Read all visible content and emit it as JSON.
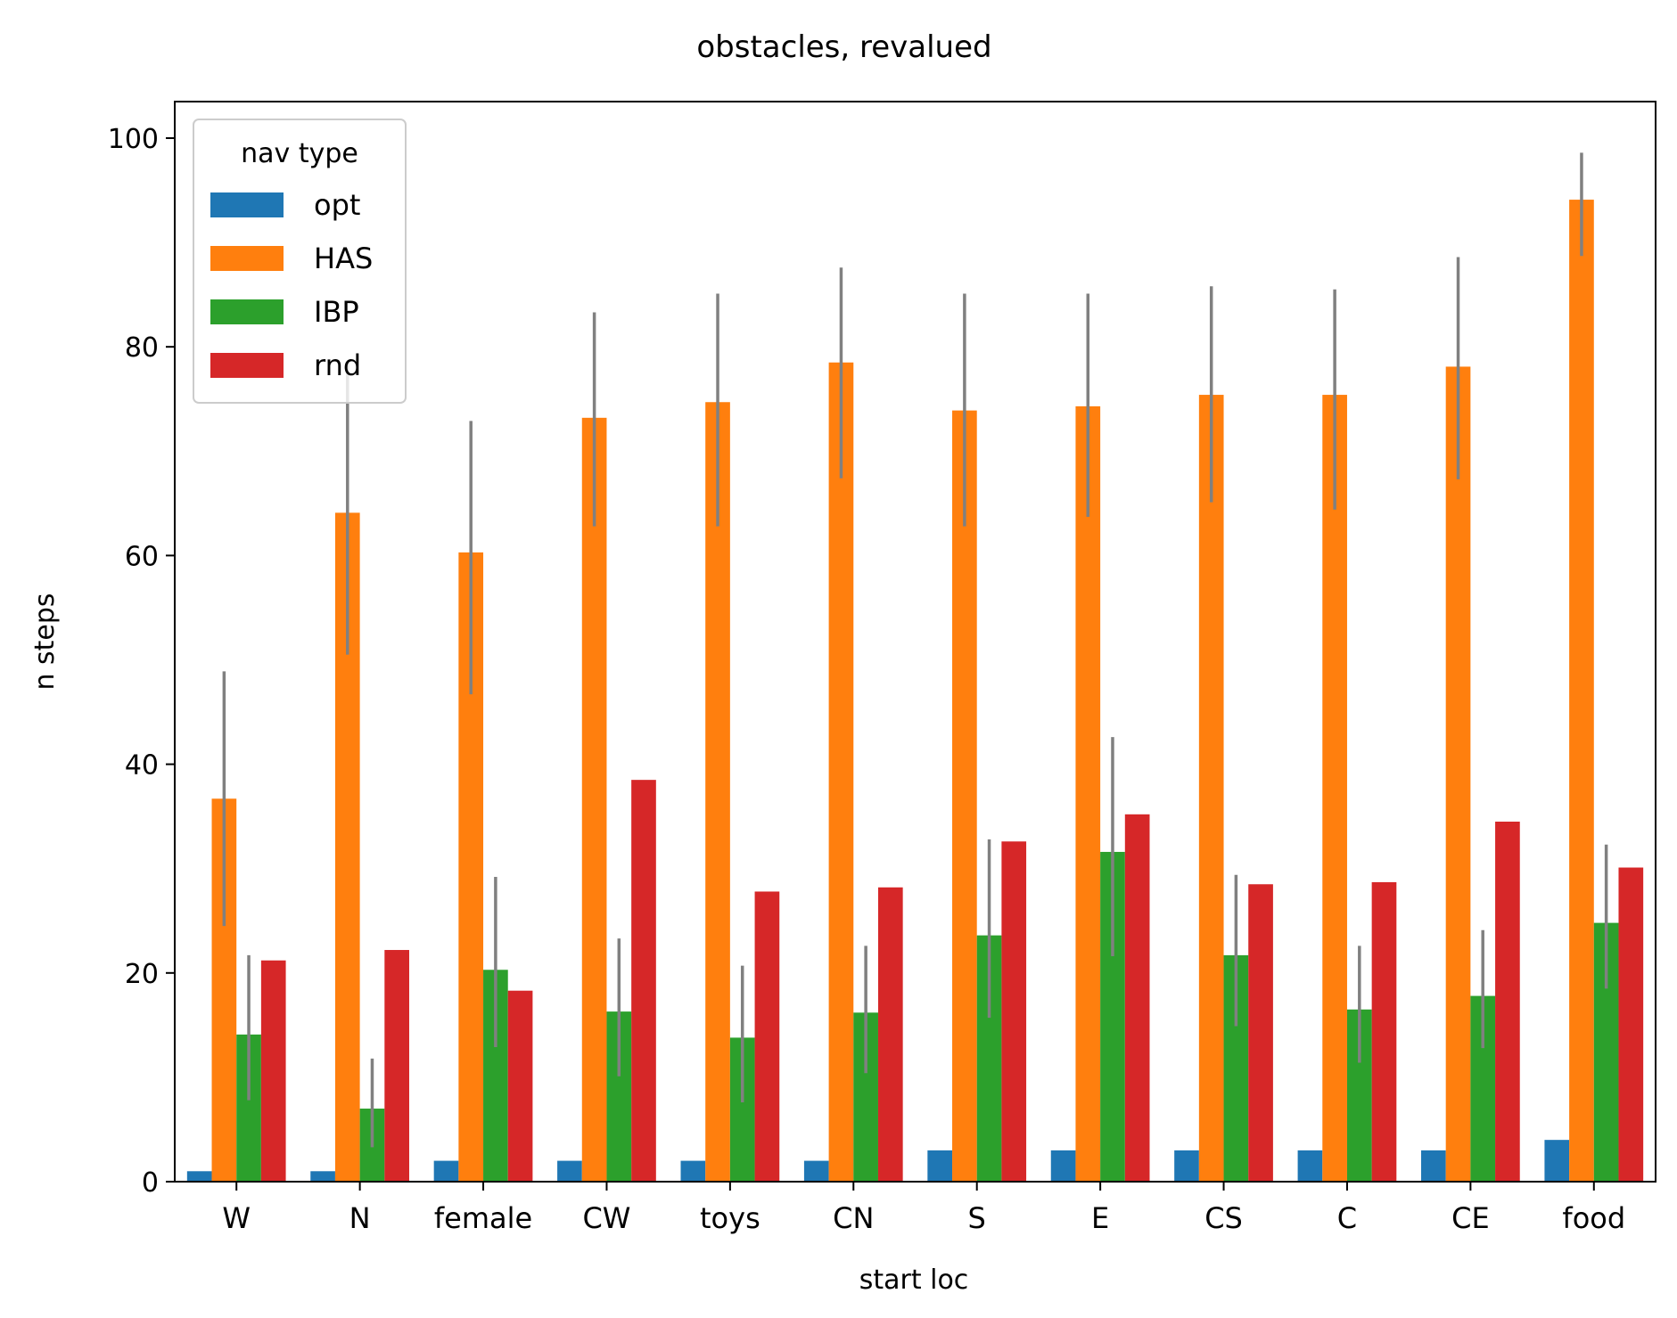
{
  "chart_data": {
    "type": "bar",
    "title": "obstacles, revalued",
    "xlabel": "start loc",
    "ylabel": "n steps",
    "ylim": [
      0,
      103.5
    ],
    "yticks": [
      0,
      20,
      40,
      60,
      80,
      100
    ],
    "grid": false,
    "categories": [
      "W",
      "N",
      "female",
      "CW",
      "toys",
      "CN",
      "S",
      "E",
      "CS",
      "C",
      "CE",
      "food"
    ],
    "legend": {
      "title": "nav type",
      "placement": "top-left"
    },
    "series": [
      {
        "name": "opt",
        "color": "#1f77b4",
        "values": [
          1,
          1,
          2,
          2,
          2,
          2,
          3,
          3,
          3,
          3,
          3,
          4
        ]
      },
      {
        "name": "HAS",
        "color": "#ff7f0e",
        "values": [
          36.7,
          64.1,
          60.3,
          73.2,
          74.7,
          78.5,
          73.9,
          74.3,
          75.4,
          75.4,
          78.1,
          94.1
        ],
        "ci_low": [
          24.5,
          50.5,
          46.7,
          62.8,
          62.8,
          67.4,
          62.8,
          63.7,
          65.1,
          64.4,
          67.3,
          88.7
        ],
        "ci_high": [
          48.9,
          78.4,
          72.9,
          83.3,
          85.1,
          87.6,
          85.1,
          85.1,
          85.8,
          85.5,
          88.6,
          98.6
        ]
      },
      {
        "name": "IBP",
        "color": "#2ca02c",
        "values": [
          14.1,
          7.0,
          20.3,
          16.3,
          13.8,
          16.2,
          23.6,
          31.6,
          21.7,
          16.5,
          17.8,
          24.8
        ],
        "ci_low": [
          7.8,
          3.3,
          12.9,
          10.1,
          7.6,
          10.4,
          15.7,
          21.6,
          14.9,
          11.4,
          12.8,
          18.5
        ],
        "ci_high": [
          21.7,
          11.8,
          29.2,
          23.3,
          20.7,
          22.6,
          32.8,
          42.6,
          29.4,
          22.6,
          24.1,
          32.3
        ]
      },
      {
        "name": "rnd",
        "color": "#d62728",
        "values": [
          21.2,
          22.2,
          18.3,
          38.5,
          27.8,
          28.2,
          32.6,
          35.2,
          28.5,
          28.7,
          34.5,
          30.1
        ]
      }
    ]
  }
}
